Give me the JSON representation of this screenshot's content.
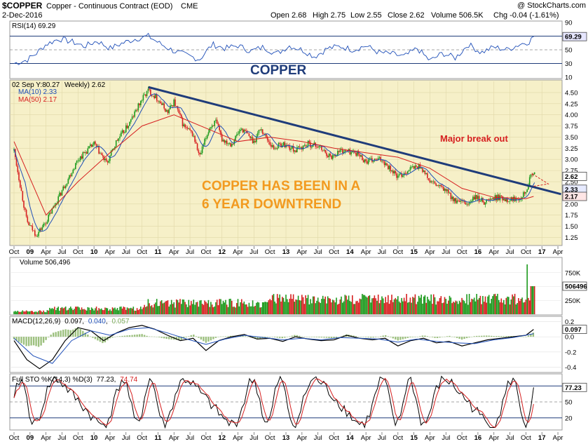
{
  "header": {
    "symbol": "$COPPER",
    "description": "Copper - Continuous Contract (EOD)",
    "exchange": "CME",
    "date": "2-Dec-2016",
    "watermark": "@ StockCharts.com",
    "open": "Open 2.68",
    "high": "High 2.75",
    "low": "Low 2.55",
    "close": "Close 2.62",
    "volume": "Volume 506.5K",
    "chg": "Chg -0.04 (-1.61%)"
  },
  "annotations": {
    "copper_title": "COPPER",
    "downtrend_line1": "COPPER HAS BEEN IN A",
    "downtrend_line2": "6 YEAR DOWNTREND",
    "breakout": "Major break out"
  },
  "colors": {
    "price_bg": "#f6f0c8",
    "up": "#1d9a1d",
    "down": "#d62020",
    "ma10": "#1f4fb8",
    "ma50": "#d62020",
    "trendline": "#1f3c7a",
    "callout": "#f29a1f"
  },
  "x_axis": {
    "labels": [
      {
        "t": 0.0,
        "text": "Oct",
        "bold": false
      },
      {
        "t": 0.25,
        "text": "09",
        "bold": true
      },
      {
        "t": 0.5,
        "text": "Apr",
        "bold": false
      },
      {
        "t": 0.75,
        "text": "Jul",
        "bold": false
      },
      {
        "t": 1.0,
        "text": "Oct",
        "bold": false
      },
      {
        "t": 1.25,
        "text": "10",
        "bold": true
      },
      {
        "t": 1.5,
        "text": "Apr",
        "bold": false
      },
      {
        "t": 1.75,
        "text": "Jul",
        "bold": false
      },
      {
        "t": 2.0,
        "text": "Oct",
        "bold": false
      },
      {
        "t": 2.25,
        "text": "11",
        "bold": true
      },
      {
        "t": 2.5,
        "text": "Apr",
        "bold": false
      },
      {
        "t": 2.75,
        "text": "Jul",
        "bold": false
      },
      {
        "t": 3.0,
        "text": "Oct",
        "bold": false
      },
      {
        "t": 3.25,
        "text": "12",
        "bold": true
      },
      {
        "t": 3.5,
        "text": "Apr",
        "bold": false
      },
      {
        "t": 3.75,
        "text": "Jul",
        "bold": false
      },
      {
        "t": 4.0,
        "text": "Oct",
        "bold": false
      },
      {
        "t": 4.25,
        "text": "13",
        "bold": true
      },
      {
        "t": 4.5,
        "text": "Apr",
        "bold": false
      },
      {
        "t": 4.75,
        "text": "Jul",
        "bold": false
      },
      {
        "t": 5.0,
        "text": "Oct",
        "bold": false
      },
      {
        "t": 5.25,
        "text": "14",
        "bold": true
      },
      {
        "t": 5.5,
        "text": "Apr",
        "bold": false
      },
      {
        "t": 5.75,
        "text": "Jul",
        "bold": false
      },
      {
        "t": 6.0,
        "text": "Oct",
        "bold": false
      },
      {
        "t": 6.25,
        "text": "15",
        "bold": true
      },
      {
        "t": 6.5,
        "text": "Apr",
        "bold": false
      },
      {
        "t": 6.75,
        "text": "Jul",
        "bold": false
      },
      {
        "t": 7.0,
        "text": "Oct",
        "bold": false
      },
      {
        "t": 7.25,
        "text": "16",
        "bold": true
      },
      {
        "t": 7.5,
        "text": "Apr",
        "bold": false
      },
      {
        "t": 7.75,
        "text": "Jul",
        "bold": false
      },
      {
        "t": 8.0,
        "text": "Oct",
        "bold": false
      },
      {
        "t": 8.25,
        "text": "17",
        "bold": true
      },
      {
        "t": 8.5,
        "text": "Apr",
        "bold": false
      }
    ]
  },
  "chart_data": [
    {
      "panel": "rsi",
      "type": "line",
      "label": "RSI(14) 69.29",
      "value": 69.29,
      "value_label": "69.29",
      "ylim": [
        10,
        90
      ],
      "yticks": [
        "90",
        "70",
        "50",
        "30",
        "10"
      ],
      "bands": [
        30,
        70
      ],
      "series": [
        {
          "x": [
            0,
            0.2,
            0.35,
            0.5,
            0.7,
            0.9,
            1.1,
            1.3,
            1.5,
            1.7,
            1.9,
            2.1,
            2.3,
            2.5,
            2.7,
            2.9,
            3.1,
            3.3,
            3.5,
            3.7,
            3.9,
            4.1,
            4.3,
            4.5,
            4.7,
            4.9,
            5.1,
            5.3,
            5.5,
            5.7,
            5.9,
            6.1,
            6.3,
            6.5,
            6.7,
            6.9,
            7.1,
            7.3,
            7.5,
            7.7,
            7.9,
            8.05,
            8.12
          ],
          "y": [
            30,
            35,
            45,
            58,
            66,
            62,
            55,
            63,
            52,
            60,
            66,
            70,
            58,
            48,
            42,
            36,
            58,
            52,
            56,
            48,
            54,
            44,
            56,
            50,
            40,
            52,
            55,
            50,
            56,
            46,
            44,
            40,
            52,
            34,
            45,
            38,
            58,
            46,
            54,
            50,
            58,
            62,
            69.29
          ]
        }
      ]
    },
    {
      "panel": "price",
      "type": "candlestick",
      "legend_date": "02 Sep Y:80.27",
      "legend_weekly": "Weekly) 2.62",
      "ma10_label": "MA(10) 2.33",
      "ma50_label": "MA(50) 2.17",
      "ylim": [
        1.1,
        4.75
      ],
      "yticks": [
        "4.50",
        "4.25",
        "4.00",
        "3.75",
        "3.50",
        "3.25",
        "3.00",
        "2.75",
        "2.50",
        "2.25",
        "2.00",
        "1.75",
        "1.50",
        "1.25"
      ],
      "last_close": "2.62",
      "ma10_value": "2.33",
      "ma50_value": "2.17",
      "close_path": {
        "x": [
          0,
          0.2,
          0.35,
          0.5,
          0.75,
          1.0,
          1.25,
          1.45,
          1.6,
          1.8,
          2.0,
          2.1,
          2.25,
          2.4,
          2.5,
          2.65,
          2.8,
          2.9,
          3.05,
          3.15,
          3.25,
          3.4,
          3.55,
          3.75,
          3.85,
          4.05,
          4.2,
          4.4,
          4.6,
          4.75,
          4.95,
          5.1,
          5.35,
          5.5,
          5.75,
          6.0,
          6.2,
          6.35,
          6.5,
          6.75,
          6.9,
          7.1,
          7.2,
          7.35,
          7.55,
          7.75,
          7.9,
          8.0,
          8.1,
          8.15
        ],
        "y": [
          3.2,
          1.6,
          1.3,
          1.6,
          2.3,
          3.0,
          3.35,
          2.9,
          3.4,
          3.8,
          4.35,
          4.55,
          4.35,
          4.05,
          4.3,
          3.75,
          3.55,
          3.05,
          3.7,
          3.85,
          3.45,
          3.35,
          3.7,
          3.4,
          3.7,
          3.25,
          3.35,
          3.2,
          3.35,
          3.3,
          3.05,
          3.2,
          3.15,
          2.95,
          3.0,
          2.6,
          2.8,
          2.85,
          2.5,
          2.3,
          2.05,
          2.0,
          2.15,
          2.05,
          2.15,
          2.1,
          2.15,
          2.3,
          2.72,
          2.62
        ]
      },
      "ma50_path": {
        "x": [
          0,
          0.5,
          1.0,
          1.5,
          2.0,
          2.5,
          3.0,
          3.5,
          4.0,
          4.5,
          5.0,
          5.5,
          6.0,
          6.5,
          7.0,
          7.5,
          8.0,
          8.12
        ],
        "y": [
          3.4,
          1.75,
          2.5,
          3.15,
          3.75,
          4.0,
          3.7,
          3.4,
          3.5,
          3.4,
          3.25,
          3.15,
          3.05,
          2.8,
          2.35,
          2.15,
          2.12,
          2.17
        ]
      },
      "trendline": {
        "x": [
          2.1,
          8.55
        ],
        "y": [
          4.62,
          2.22
        ]
      },
      "projection": {
        "x": [
          8.1,
          8.35
        ],
        "y": [
          2.55,
          2.45
        ]
      }
    },
    {
      "panel": "volume",
      "type": "bar",
      "label": "Volume 506,496",
      "value_label": "506496",
      "ylim": [
        0,
        1000000
      ],
      "yticks": [
        "750K",
        "500K",
        "250K"
      ],
      "last_value": 506496,
      "spike": {
        "x": 8.02,
        "value": 900000
      }
    },
    {
      "panel": "macd",
      "type": "line",
      "label_prefix": "MACD(12,26,9)",
      "macd_value": "0.097",
      "signal_value": "0.040",
      "hist_value": "0.057",
      "value_label": "0.097",
      "ylim": [
        -0.45,
        0.25
      ],
      "yticks": [
        "0.2",
        "0.0",
        "-0.2",
        "-0.4"
      ],
      "macd": {
        "x": [
          0,
          0.2,
          0.4,
          0.6,
          0.8,
          1.0,
          1.2,
          1.4,
          1.6,
          1.8,
          2.0,
          2.2,
          2.4,
          2.6,
          2.8,
          3.0,
          3.2,
          3.4,
          3.6,
          3.8,
          4.0,
          4.2,
          4.4,
          4.6,
          4.8,
          5.0,
          5.2,
          5.4,
          5.6,
          5.8,
          6.0,
          6.2,
          6.4,
          6.6,
          6.8,
          7.0,
          7.2,
          7.4,
          7.6,
          7.8,
          8.0,
          8.12
        ],
        "y": [
          -0.05,
          -0.3,
          -0.42,
          -0.3,
          -0.05,
          0.12,
          0.08,
          -0.05,
          0.05,
          0.12,
          0.15,
          0.1,
          0.02,
          -0.05,
          -0.02,
          -0.18,
          -0.05,
          0.0,
          0.03,
          -0.03,
          -0.02,
          -0.06,
          0.0,
          -0.03,
          -0.05,
          -0.04,
          0.02,
          -0.02,
          -0.04,
          -0.02,
          -0.12,
          -0.05,
          -0.02,
          -0.08,
          -0.06,
          -0.12,
          -0.08,
          -0.04,
          -0.02,
          0.0,
          0.02,
          0.097
        ]
      },
      "signal": {
        "x": [
          0,
          0.3,
          0.6,
          0.9,
          1.2,
          1.5,
          1.8,
          2.1,
          2.4,
          2.7,
          3.0,
          3.3,
          3.6,
          3.9,
          4.2,
          4.5,
          4.8,
          5.1,
          5.4,
          5.7,
          6.0,
          6.3,
          6.6,
          6.9,
          7.2,
          7.5,
          7.8,
          8.12
        ],
        "y": [
          -0.02,
          -0.25,
          -0.35,
          -0.05,
          0.08,
          0.02,
          0.1,
          0.12,
          0.05,
          -0.03,
          -0.1,
          -0.03,
          0.02,
          -0.01,
          -0.04,
          -0.02,
          -0.04,
          -0.01,
          -0.02,
          -0.03,
          -0.07,
          -0.03,
          -0.06,
          -0.08,
          -0.09,
          -0.04,
          -0.01,
          0.04
        ]
      }
    },
    {
      "panel": "sto",
      "type": "line",
      "label_prefix": "Full STO %K(14,3) %D(3)",
      "k_value": "77.23",
      "d_value": "74.74",
      "value_label": "77.23",
      "ylim": [
        0,
        100
      ],
      "yticks": [
        "80",
        "50",
        "20"
      ],
      "bands": [
        20,
        80
      ]
    }
  ]
}
